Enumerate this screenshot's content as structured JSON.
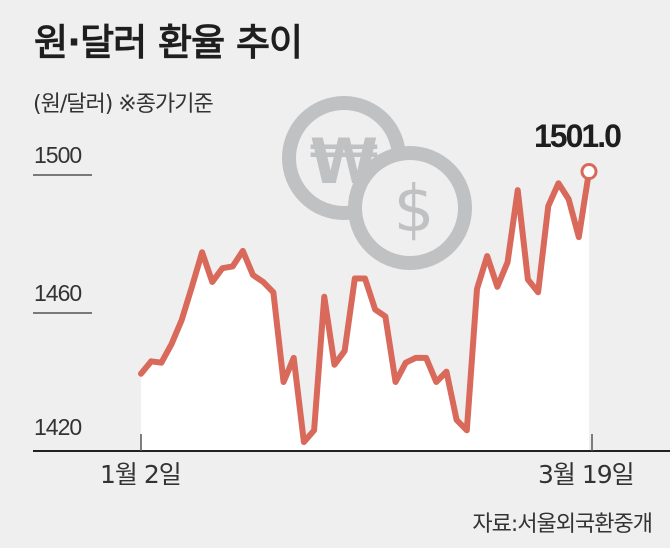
{
  "title": "원·달러 환율 추이",
  "subtitle": "(원/달러)  ※종가기준",
  "source": "자료:서울외국환중개",
  "chart_data": {
    "type": "area",
    "title": "원·달러 환율 추이",
    "ylabel": "(원/달러)",
    "note": "※종가기준",
    "x_start_label": "1월 2일",
    "x_end_label": "3월 19일",
    "yticks": [
      1500,
      1460,
      1420
    ],
    "ylim": [
      1420,
      1510
    ],
    "grid": false,
    "line_color": "#d9695a",
    "fill_color": "#ffffff",
    "background_color": "#efefef",
    "values": [
      1442.4,
      1446,
      1445.6,
      1451,
      1458,
      1467.6,
      1477.6,
      1469,
      1473,
      1473.5,
      1478,
      1471,
      1469,
      1466,
      1440,
      1447,
      1422.6,
      1426,
      1464.7,
      1445,
      1449,
      1470,
      1470,
      1461,
      1459,
      1440,
      1445.6,
      1447,
      1447,
      1440,
      1443,
      1429,
      1426,
      1467,
      1476.5,
      1467.6,
      1474.7,
      1495.6,
      1469.7,
      1466,
      1491,
      1497.6,
      1493,
      1482,
      1501.0
    ],
    "last_value_label": "1501.0",
    "icons": [
      "won-coin-icon",
      "dollar-coin-icon"
    ]
  }
}
